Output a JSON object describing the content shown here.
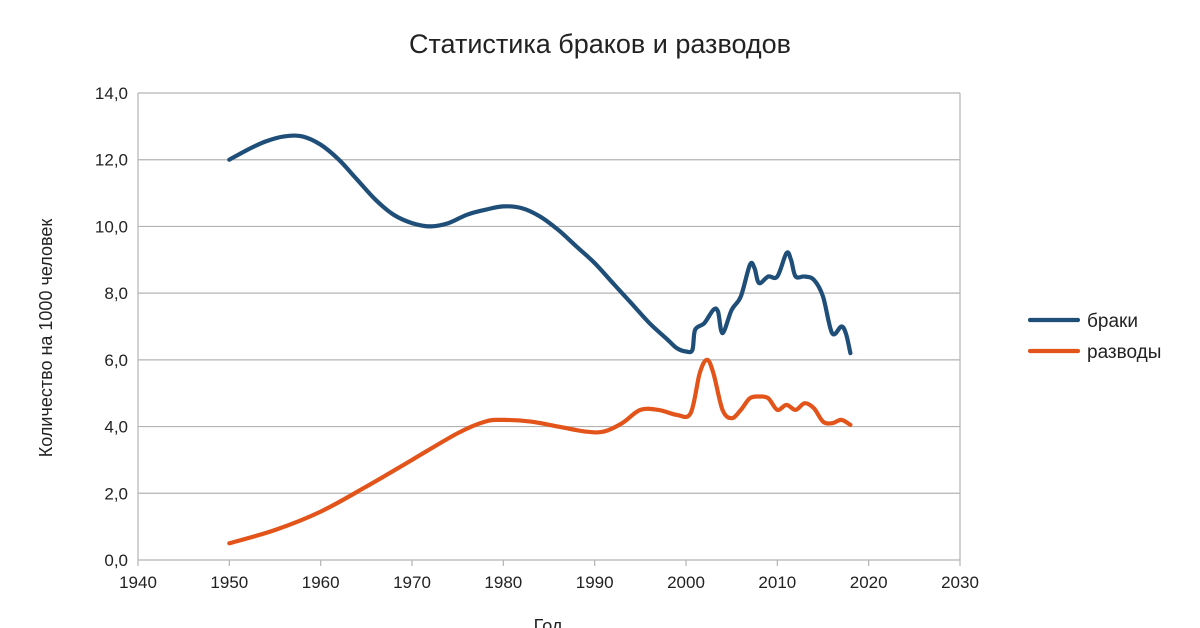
{
  "chart_data": {
    "type": "line",
    "title": "Статистика браков и разводов",
    "xlabel": "Год",
    "ylabel": "Количество на 1000 человек",
    "xlim": [
      1940,
      2030
    ],
    "ylim": [
      0,
      14
    ],
    "x_ticks": [
      1940,
      1950,
      1960,
      1970,
      1980,
      1990,
      2000,
      2010,
      2020,
      2030
    ],
    "y_ticks": [
      0,
      2,
      4,
      6,
      8,
      10,
      12,
      14
    ],
    "y_tick_labels": [
      "0,0",
      "2,0",
      "4,0",
      "6,0",
      "8,0",
      "10,0",
      "12,0",
      "14,0"
    ],
    "grid": "horizontal",
    "legend_position": "right",
    "series": [
      {
        "name": "браки",
        "color": "#1f4e79",
        "points": [
          [
            1950,
            12.0
          ],
          [
            1952,
            12.3
          ],
          [
            1954,
            12.55
          ],
          [
            1956,
            12.7
          ],
          [
            1958,
            12.7
          ],
          [
            1960,
            12.45
          ],
          [
            1962,
            12.0
          ],
          [
            1964,
            11.4
          ],
          [
            1966,
            10.8
          ],
          [
            1968,
            10.35
          ],
          [
            1970,
            10.1
          ],
          [
            1972,
            10.0
          ],
          [
            1974,
            10.1
          ],
          [
            1976,
            10.35
          ],
          [
            1978,
            10.5
          ],
          [
            1980,
            10.6
          ],
          [
            1982,
            10.55
          ],
          [
            1984,
            10.3
          ],
          [
            1986,
            9.9
          ],
          [
            1988,
            9.4
          ],
          [
            1990,
            8.9
          ],
          [
            1992,
            8.3
          ],
          [
            1994,
            7.7
          ],
          [
            1996,
            7.1
          ],
          [
            1998,
            6.6
          ],
          [
            1999,
            6.35
          ],
          [
            2000,
            6.25
          ],
          [
            2000.7,
            6.3
          ],
          [
            2001,
            6.9
          ],
          [
            2002,
            7.1
          ],
          [
            2003,
            7.5
          ],
          [
            2003.5,
            7.45
          ],
          [
            2004,
            6.8
          ],
          [
            2005,
            7.5
          ],
          [
            2006,
            7.9
          ],
          [
            2007,
            8.85
          ],
          [
            2007.5,
            8.75
          ],
          [
            2008,
            8.3
          ],
          [
            2009,
            8.5
          ],
          [
            2010,
            8.5
          ],
          [
            2011,
            9.2
          ],
          [
            2011.5,
            9.0
          ],
          [
            2012,
            8.5
          ],
          [
            2013,
            8.5
          ],
          [
            2014,
            8.4
          ],
          [
            2015,
            7.9
          ],
          [
            2016,
            6.8
          ],
          [
            2017,
            7.0
          ],
          [
            2017.5,
            6.8
          ],
          [
            2018,
            6.2
          ]
        ]
      },
      {
        "name": "разводы",
        "color": "#e3541b",
        "points": [
          [
            1950,
            0.5
          ],
          [
            1955,
            0.9
          ],
          [
            1960,
            1.45
          ],
          [
            1965,
            2.2
          ],
          [
            1970,
            3.0
          ],
          [
            1975,
            3.8
          ],
          [
            1978,
            4.15
          ],
          [
            1980,
            4.2
          ],
          [
            1983,
            4.15
          ],
          [
            1986,
            4.0
          ],
          [
            1989,
            3.85
          ],
          [
            1991,
            3.85
          ],
          [
            1993,
            4.1
          ],
          [
            1995,
            4.5
          ],
          [
            1997,
            4.5
          ],
          [
            1999,
            4.35
          ],
          [
            2000.5,
            4.4
          ],
          [
            2001.5,
            5.6
          ],
          [
            2002.3,
            6.0
          ],
          [
            2003,
            5.6
          ],
          [
            2004,
            4.5
          ],
          [
            2005,
            4.25
          ],
          [
            2006,
            4.5
          ],
          [
            2007,
            4.85
          ],
          [
            2008,
            4.9
          ],
          [
            2009,
            4.85
          ],
          [
            2010,
            4.5
          ],
          [
            2011,
            4.65
          ],
          [
            2012,
            4.5
          ],
          [
            2013,
            4.7
          ],
          [
            2014,
            4.55
          ],
          [
            2015,
            4.15
          ],
          [
            2016,
            4.1
          ],
          [
            2017,
            4.2
          ],
          [
            2018,
            4.05
          ]
        ]
      }
    ]
  }
}
